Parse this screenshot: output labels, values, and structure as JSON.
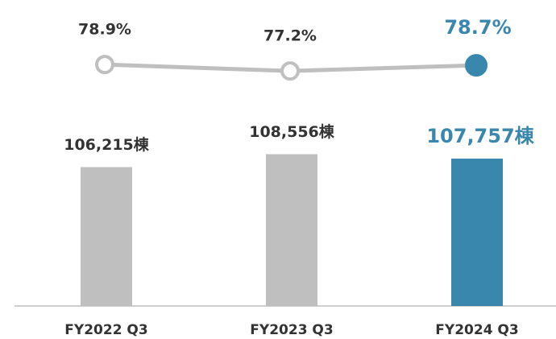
{
  "chart_data": {
    "type": "bar",
    "categories": [
      "FY2022 Q3",
      "FY2023 Q3",
      "FY2024 Q3"
    ],
    "ylim": [
      81000,
      125000
    ],
    "y2lim": [
      70,
      85
    ],
    "series": [
      {
        "type": "bar",
        "values": [
          106215,
          108556,
          107757
        ],
        "value_labels": [
          "106,215棟",
          "108,556棟",
          "107,757棟"
        ],
        "colors": [
          "#bfbfbf",
          "#bfbfbf",
          "#3a87ad"
        ]
      },
      {
        "type": "line",
        "axis": "y2",
        "color": "#bfbfbf",
        "values": [
          78.9,
          77.2,
          78.7
        ],
        "value_labels": [
          "78.9%",
          "77.2%",
          "78.7%"
        ],
        "marker_colors": [
          "#ffffff",
          "#ffffff",
          "#3a87ad"
        ]
      }
    ],
    "highlight_color": "#3a87ad"
  }
}
